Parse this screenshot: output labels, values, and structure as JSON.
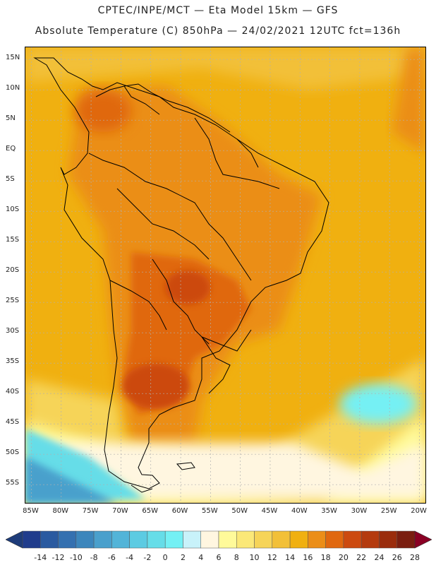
{
  "header": {
    "line1": "CPTEC/INPE/MCT —  Eta Model 15km — GFS",
    "line2": "Absolute Temperature (C) 850hPa — 24/02/2021 12UTC fct=136h"
  },
  "map": {
    "lat_labels": [
      "15N",
      "10N",
      "5N",
      "EQ",
      "5S",
      "10S",
      "15S",
      "20S",
      "25S",
      "30S",
      "35S",
      "40S",
      "45S",
      "50S",
      "55S"
    ],
    "lon_labels": [
      "85W",
      "80W",
      "75W",
      "70W",
      "65W",
      "60W",
      "55W",
      "50W",
      "45W",
      "40W",
      "35W",
      "30W",
      "25W",
      "20W"
    ],
    "lat_values": [
      15,
      10,
      5,
      0,
      -5,
      -10,
      -15,
      -20,
      -25,
      -30,
      -35,
      -40,
      -45,
      -50,
      -55
    ],
    "lon_values": [
      -85,
      -80,
      -75,
      -70,
      -65,
      -60,
      -55,
      -50,
      -45,
      -40,
      -35,
      -30,
      -25,
      -20
    ],
    "extent": {
      "lon_min": -86,
      "lon_max": -19,
      "lat_min": -58,
      "lat_max": 17
    }
  },
  "colorbar": {
    "labels": [
      "-14",
      "-12",
      "-10",
      "-8",
      "-6",
      "-4",
      "-2",
      "0",
      "2",
      "4",
      "6",
      "8",
      "10",
      "12",
      "14",
      "16",
      "18",
      "20",
      "22",
      "24",
      "26",
      "28"
    ],
    "colors": [
      "#203c8c",
      "#2a5aa0",
      "#3470b0",
      "#3c86bc",
      "#4aa0cc",
      "#52b4d8",
      "#5ccbe2",
      "#66dde8",
      "#74f0f4",
      "#c8f2fa",
      "#fff6e0",
      "#fffa9a",
      "#fbe878",
      "#f6d458",
      "#f2c038",
      "#f0b010",
      "#eb8e18",
      "#e06810",
      "#cc4a10",
      "#b43a0e",
      "#9a2c0c",
      "#7a1e10"
    ],
    "under_color": "#1e3c7a",
    "over_color": "#8a0024"
  }
}
